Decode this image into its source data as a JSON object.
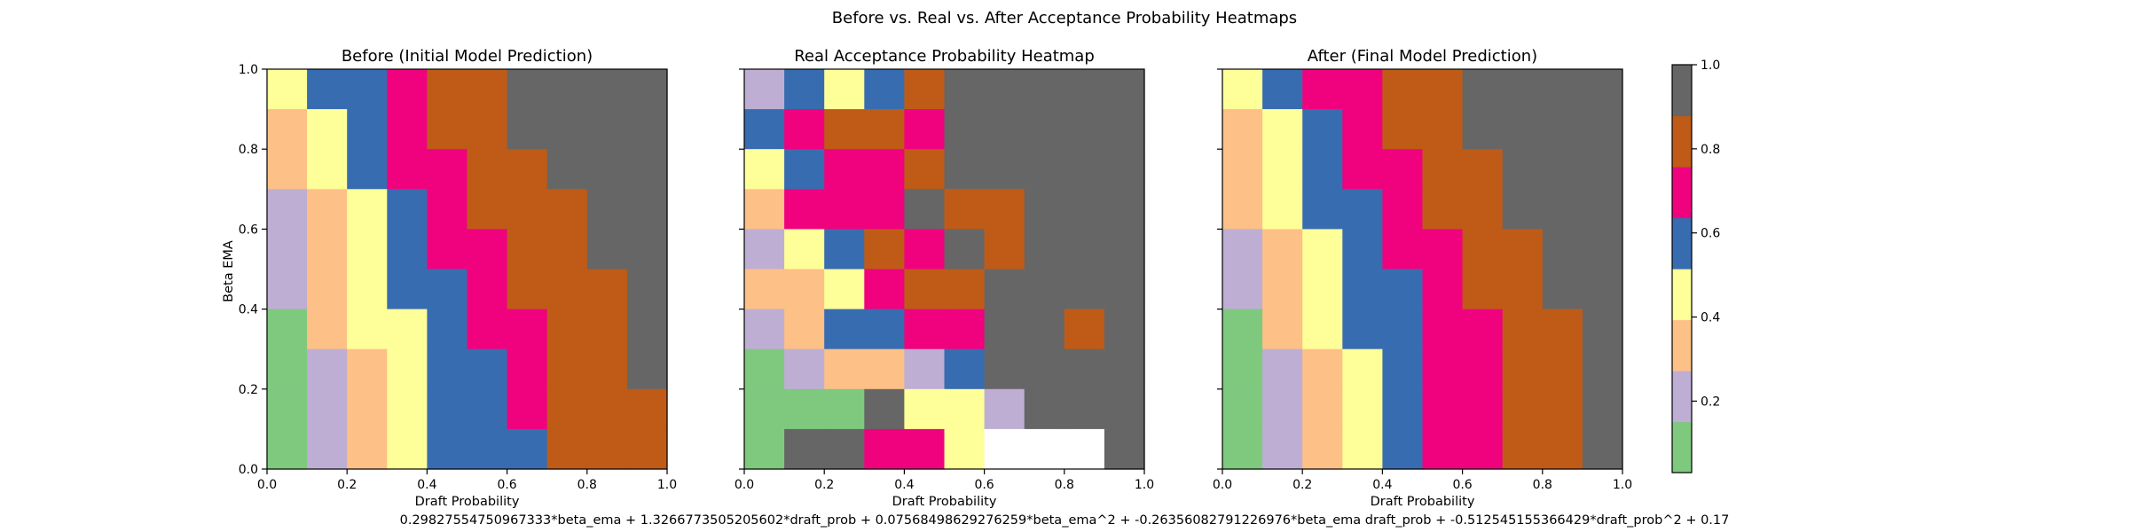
{
  "figure": {
    "suptitle": "Before vs. Real vs. After Acceptance Probability Heatmaps",
    "formula": "0.29827554750967333*beta_ema + 1.3266773505205602*draft_prob + 0.07568498629276259*beta_ema^2 + -0.26356082791226976*beta_ema draft_prob + -0.512545155366429*draft_prob^2 + 0.17"
  },
  "colors": {
    "palette": [
      "#7fc97f",
      "#beaed4",
      "#fdc086",
      "#ffff99",
      "#386cb0",
      "#f0027f",
      "#bf5b17",
      "#666666"
    ],
    "missing": "#ffffff"
  },
  "chart_data": [
    {
      "type": "heatmap",
      "title": "Before (Initial Model Prediction)",
      "xlabel": "Draft Probability",
      "ylabel": "Beta EMA",
      "xlim": [
        0,
        1
      ],
      "ylim": [
        0,
        1
      ],
      "x_ticks": [
        "0.0",
        "0.2",
        "0.4",
        "0.6",
        "0.8",
        "1.0"
      ],
      "y_ticks": [
        "0.0",
        "0.2",
        "0.4",
        "0.6",
        "0.8",
        "1.0"
      ],
      "rows_top_to_bottom": [
        [
          3,
          4,
          4,
          5,
          6,
          6,
          7,
          7,
          7,
          7
        ],
        [
          2,
          3,
          4,
          5,
          6,
          6,
          7,
          7,
          7,
          7
        ],
        [
          2,
          3,
          4,
          5,
          5,
          6,
          6,
          7,
          7,
          7
        ],
        [
          1,
          2,
          3,
          4,
          5,
          6,
          6,
          6,
          7,
          7
        ],
        [
          1,
          2,
          3,
          4,
          5,
          5,
          6,
          6,
          7,
          7
        ],
        [
          1,
          2,
          3,
          4,
          4,
          5,
          6,
          6,
          6,
          7
        ],
        [
          0,
          2,
          3,
          3,
          4,
          5,
          5,
          6,
          6,
          7
        ],
        [
          0,
          1,
          2,
          3,
          4,
          4,
          5,
          6,
          6,
          7
        ],
        [
          0,
          1,
          2,
          3,
          4,
          4,
          5,
          6,
          6,
          6
        ],
        [
          0,
          1,
          2,
          3,
          4,
          4,
          4,
          6,
          6,
          6
        ]
      ]
    },
    {
      "type": "heatmap",
      "title": "Real Acceptance Probability Heatmap",
      "xlabel": "Draft Probability",
      "ylabel": "",
      "xlim": [
        0,
        1
      ],
      "ylim": [
        0,
        1
      ],
      "x_ticks": [
        "0.0",
        "0.2",
        "0.4",
        "0.6",
        "0.8",
        "1.0"
      ],
      "y_ticks": [],
      "rows_top_to_bottom": [
        [
          1,
          4,
          3,
          4,
          6,
          7,
          7,
          7,
          7,
          7
        ],
        [
          4,
          5,
          6,
          6,
          5,
          7,
          7,
          7,
          7,
          7
        ],
        [
          3,
          4,
          5,
          5,
          6,
          7,
          7,
          7,
          7,
          7
        ],
        [
          2,
          5,
          5,
          5,
          7,
          6,
          6,
          7,
          7,
          7
        ],
        [
          1,
          3,
          4,
          6,
          5,
          7,
          6,
          7,
          7,
          7
        ],
        [
          2,
          2,
          3,
          5,
          6,
          6,
          7,
          7,
          7,
          7
        ],
        [
          1,
          2,
          4,
          4,
          5,
          5,
          7,
          7,
          6,
          7
        ],
        [
          0,
          1,
          2,
          2,
          1,
          4,
          7,
          7,
          7,
          7
        ],
        [
          0,
          0,
          0,
          7,
          3,
          3,
          1,
          7,
          7,
          7
        ],
        [
          0,
          7,
          7,
          5,
          5,
          3,
          -1,
          -1,
          -1,
          7
        ]
      ]
    },
    {
      "type": "heatmap",
      "title": "After (Final Model Prediction)",
      "xlabel": "Draft Probability",
      "ylabel": "",
      "xlim": [
        0,
        1
      ],
      "ylim": [
        0,
        1
      ],
      "x_ticks": [
        "0.0",
        "0.2",
        "0.4",
        "0.6",
        "0.8",
        "1.0"
      ],
      "y_ticks": [],
      "rows_top_to_bottom": [
        [
          3,
          4,
          5,
          5,
          6,
          6,
          7,
          7,
          7,
          7
        ],
        [
          2,
          3,
          4,
          5,
          6,
          6,
          7,
          7,
          7,
          7
        ],
        [
          2,
          3,
          4,
          5,
          5,
          6,
          6,
          7,
          7,
          7
        ],
        [
          2,
          3,
          4,
          4,
          5,
          6,
          6,
          7,
          7,
          7
        ],
        [
          1,
          2,
          3,
          4,
          5,
          5,
          6,
          6,
          7,
          7
        ],
        [
          1,
          2,
          3,
          4,
          4,
          5,
          6,
          6,
          7,
          7
        ],
        [
          0,
          2,
          3,
          4,
          4,
          5,
          5,
          6,
          6,
          7
        ],
        [
          0,
          1,
          2,
          3,
          4,
          5,
          5,
          6,
          6,
          7
        ],
        [
          0,
          1,
          2,
          3,
          4,
          5,
          5,
          6,
          6,
          7
        ],
        [
          0,
          1,
          2,
          3,
          4,
          5,
          5,
          6,
          6,
          7
        ]
      ]
    }
  ],
  "colorbar": {
    "vmin": 0.03,
    "vmax": 1.0,
    "ticks": [
      {
        "value": 0.2,
        "label": "0.2"
      },
      {
        "value": 0.4,
        "label": "0.4"
      },
      {
        "value": 0.6,
        "label": "0.6"
      },
      {
        "value": 0.8,
        "label": "0.8"
      },
      {
        "value": 1.0,
        "label": "1.0"
      }
    ]
  }
}
